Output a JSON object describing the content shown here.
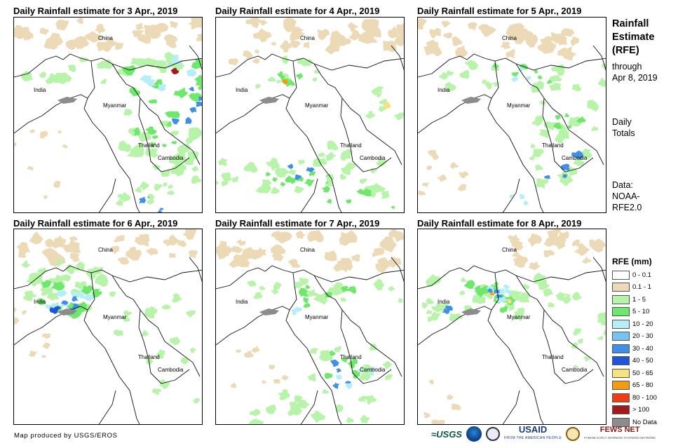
{
  "panels": [
    {
      "title": "Daily Rainfall estimate for 3 Apr., 2019",
      "day": 3
    },
    {
      "title": "Daily Rainfall estimate for 4 Apr., 2019",
      "day": 4
    },
    {
      "title": "Daily Rainfall estimate for 5 Apr., 2019",
      "day": 5
    },
    {
      "title": "Daily Rainfall estimate for 6 Apr., 2019",
      "day": 6
    },
    {
      "title": "Daily Rainfall estimate for 7 Apr., 2019",
      "day": 7
    },
    {
      "title": "Daily Rainfall estimate for 8 Apr., 2019",
      "day": 8
    }
  ],
  "place_labels": {
    "china": "China",
    "india": "India",
    "myanmar": "Myanmar",
    "thailand": "Thailand",
    "cambodia": "Cambodia"
  },
  "sidebar": {
    "title_line1": "Rainfall",
    "title_line2": "Estimate",
    "title_line3": "(RFE)",
    "through_line1": "through",
    "through_line2": "Apr 8, 2019",
    "totals_line1": "Daily",
    "totals_line2": "Totals",
    "data_line1": "Data:",
    "data_line2": "NOAA-",
    "data_line3": "RFE2.0"
  },
  "legend": {
    "title": "RFE (mm)",
    "items": [
      {
        "label": "0 - 0.1",
        "color": "#ffffff"
      },
      {
        "label": "0.1 - 1",
        "color": "#ecd9b5"
      },
      {
        "label": "1 - 5",
        "color": "#b7f3a8"
      },
      {
        "label": "5 - 10",
        "color": "#6ee86a"
      },
      {
        "label": "10 - 20",
        "color": "#b5eef7"
      },
      {
        "label": "20 - 30",
        "color": "#74c3f2"
      },
      {
        "label": "30 - 40",
        "color": "#3f8fe6"
      },
      {
        "label": "40 - 50",
        "color": "#1f55d6"
      },
      {
        "label": "50 - 65",
        "color": "#f6e27e"
      },
      {
        "label": "65 - 80",
        "color": "#f59b12"
      },
      {
        "label": "80 - 100",
        "color": "#f03c14"
      },
      {
        "label": "> 100",
        "color": "#a41a1a"
      },
      {
        "label": "No Data",
        "color": "#8c8c8c"
      }
    ]
  },
  "footer": {
    "credit": "Map produced by USGS/EROS",
    "logo_usgs": "≈USGS",
    "logo_usaid": "USAID",
    "logo_usaid_sub": "FROM THE AMERICAN PEOPLE",
    "logo_fews": "FEWS NET",
    "logo_fews_sub": "FAMINE EARLY WARNING SYSTEMS NETWORK"
  }
}
